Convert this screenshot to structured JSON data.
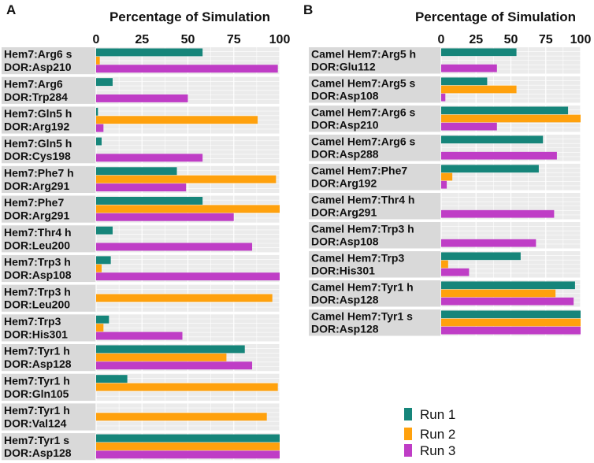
{
  "chart_data": [
    {
      "panel": "A",
      "type": "bar",
      "orientation": "horizontal",
      "title": "Percentage of Simulation",
      "xlim": [
        0,
        100
      ],
      "xticks": [
        0,
        25,
        50,
        75,
        100
      ],
      "categories": [
        [
          "Hem7:Arg6 s",
          "DOR:Asp210"
        ],
        [
          "Hem7:Arg6",
          "DOR:Trp284"
        ],
        [
          "Hem7:Gln5 h",
          "DOR:Arg192"
        ],
        [
          "Hem7:Gln5 h",
          "DOR:Cys198"
        ],
        [
          "Hem7:Phe7 h",
          "DOR:Arg291"
        ],
        [
          "Hem7:Phe7",
          "DOR:Arg291"
        ],
        [
          "Hem7:Thr4 h",
          "DOR:Leu200"
        ],
        [
          "Hem7:Trp3 h",
          "DOR:Asp108"
        ],
        [
          "Hem7:Trp3 h",
          "DOR:Leu200"
        ],
        [
          "Hem7:Trp3",
          "DOR:His301"
        ],
        [
          "Hem7:Tyr1 h",
          "DOR:Asp128"
        ],
        [
          "Hem7:Tyr1 h",
          "DOR:Gln105"
        ],
        [
          "Hem7:Tyr1 h",
          "DOR:Val124"
        ],
        [
          "Hem7:Tyr1 s",
          "DOR:Asp128"
        ]
      ],
      "series": [
        {
          "name": "Run 1",
          "values": [
            58,
            9,
            1,
            3,
            44,
            58,
            9,
            8,
            0,
            7,
            81,
            17,
            0,
            100
          ]
        },
        {
          "name": "Run 2",
          "values": [
            2,
            0,
            88,
            0,
            98,
            100,
            0,
            3,
            96,
            4,
            71,
            99,
            93,
            100
          ]
        },
        {
          "name": "Run 3",
          "values": [
            99,
            50,
            4,
            58,
            49,
            75,
            85,
            100,
            0,
            47,
            85,
            0,
            0,
            100
          ]
        }
      ]
    },
    {
      "panel": "B",
      "type": "bar",
      "orientation": "horizontal",
      "title": "Percentage of Simulation",
      "xlim": [
        0,
        100
      ],
      "xticks": [
        0,
        25,
        50,
        75,
        100
      ],
      "categories": [
        [
          "Camel Hem7:Arg5 h",
          "DOR:Glu112"
        ],
        [
          "Camel Hem7:Arg5 s",
          "DOR:Asp108"
        ],
        [
          "Camel Hem7:Arg6 s",
          "DOR:Asp210"
        ],
        [
          "Camel Hem7:Arg6 s",
          "DOR:Asp288"
        ],
        [
          "Camel Hem7:Phe7",
          "DOR:Arg192"
        ],
        [
          "Camel Hem7:Thr4 h",
          "DOR:Arg291"
        ],
        [
          "Camel Hem7:Trp3 h",
          "DOR:Asp108"
        ],
        [
          "Camel Hem7:Trp3",
          "DOR:His301"
        ],
        [
          "Camel Hem7:Tyr1 h",
          "DOR:Asp128"
        ],
        [
          "Camel Hem7:Tyr1 s",
          "DOR:Asp128"
        ]
      ],
      "series": [
        {
          "name": "Run 1",
          "values": [
            54,
            33,
            91,
            73,
            70,
            0,
            0,
            57,
            96,
            100
          ]
        },
        {
          "name": "Run 2",
          "values": [
            0,
            54,
            100,
            0,
            8,
            0,
            0,
            5,
            82,
            100
          ]
        },
        {
          "name": "Run 3",
          "values": [
            40,
            3,
            40,
            83,
            4,
            81,
            68,
            20,
            95,
            100
          ]
        }
      ]
    }
  ],
  "legend": [
    {
      "label": "Run 1",
      "color": "#16857a"
    },
    {
      "label": "Run 2",
      "color": "#ffa10d"
    },
    {
      "label": "Run 3",
      "color": "#bf3dc6"
    }
  ],
  "colors": {
    "run1": "#16857a",
    "run2": "#ffa10d",
    "run3": "#bf3dc6",
    "label_bg": "#d9d9d9",
    "plot_bg": "#ebebeb",
    "grid": "#ffffff"
  }
}
